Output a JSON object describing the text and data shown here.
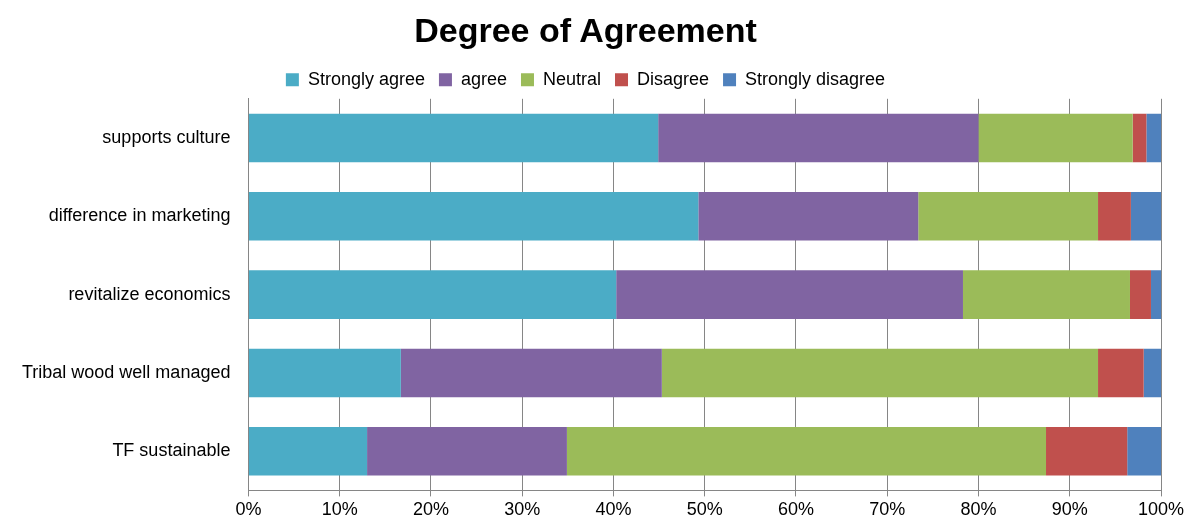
{
  "chart_data": {
    "type": "bar",
    "title": "Degree of Agreement",
    "orientation": "horizontal",
    "stacked": true,
    "legend": "top",
    "grid": "x",
    "categories": [
      "supports culture",
      "difference in marketing",
      "revitalize economics",
      "Tribal wood well managed",
      "TF sustainable"
    ],
    "series": [
      {
        "name": "Strongly agree",
        "color": "#4bacc6",
        "values": [
          44.9,
          49.3,
          40.3,
          16.7,
          13.0
        ]
      },
      {
        "name": "agree",
        "color": "#8064a2",
        "values": [
          35.1,
          24.1,
          38.0,
          28.6,
          21.9
        ]
      },
      {
        "name": "Neutral",
        "color": "#9bbb59",
        "values": [
          16.9,
          19.7,
          18.3,
          47.8,
          52.5
        ]
      },
      {
        "name": "Disagree",
        "color": "#c0504d",
        "values": [
          1.5,
          3.6,
          2.3,
          5.0,
          8.9
        ]
      },
      {
        "name": "Strongly disagree",
        "color": "#4f81bd",
        "values": [
          1.6,
          3.3,
          1.1,
          1.9,
          3.7
        ]
      }
    ],
    "xlim": [
      0,
      100
    ],
    "xticks": [
      {
        "value": 0,
        "label": "0%"
      },
      {
        "value": 10,
        "label": "10%"
      },
      {
        "value": 20,
        "label": "20%"
      },
      {
        "value": 30,
        "label": "30%"
      },
      {
        "value": 40,
        "label": "40%"
      },
      {
        "value": 50,
        "label": "50%"
      },
      {
        "value": 60,
        "label": "60%"
      },
      {
        "value": 70,
        "label": "70%"
      },
      {
        "value": 80,
        "label": "80%"
      },
      {
        "value": 90,
        "label": "90%"
      },
      {
        "value": 100,
        "label": "100%"
      }
    ]
  }
}
